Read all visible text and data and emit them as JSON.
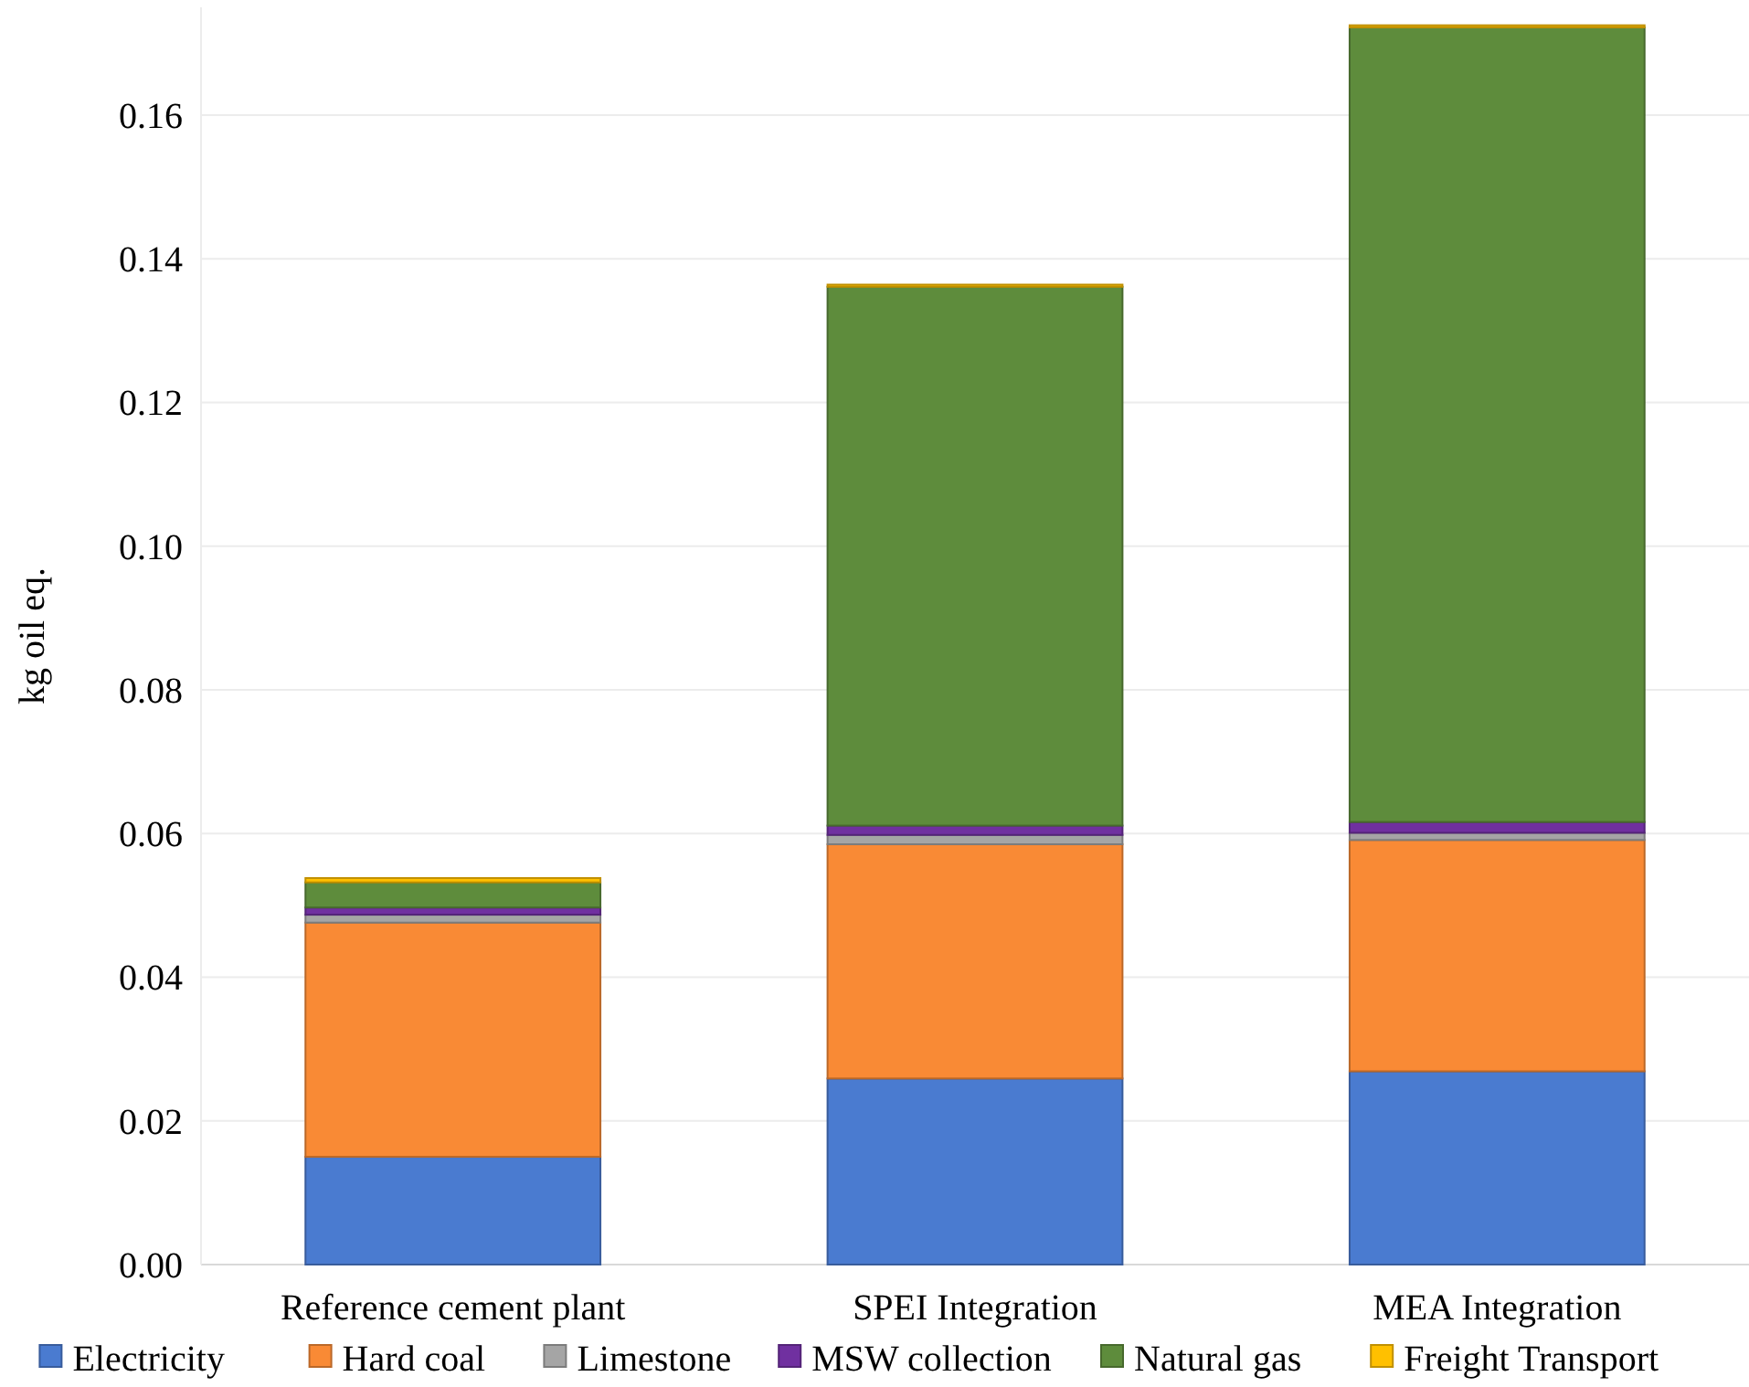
{
  "chart_data": {
    "type": "bar",
    "stacked": true,
    "ylabel": "kg oil eq.",
    "categories": [
      "Reference cement plant",
      "SPEI Integration",
      "MEA Integration"
    ],
    "series": [
      {
        "name": "Electricity",
        "color": "#4a7bd0",
        "values": [
          0.015,
          0.0259,
          0.0269
        ]
      },
      {
        "name": "Hard coal",
        "color": "#f98a35",
        "values": [
          0.0326,
          0.0326,
          0.0322
        ]
      },
      {
        "name": "Limestone",
        "color": "#a5a5a5",
        "values": [
          0.0011,
          0.0013,
          0.001
        ]
      },
      {
        "name": "MSW collection",
        "color": "#7030a0",
        "values": [
          0.001,
          0.0013,
          0.0015
        ]
      },
      {
        "name": "Natural gas",
        "color": "#5e8c3c",
        "values": [
          0.0035,
          0.075,
          0.1106
        ]
      },
      {
        "name": "Freight Transport",
        "color": "#ffc000",
        "values": [
          0.0006,
          0.0003,
          0.0003
        ]
      }
    ],
    "ylim": [
      0,
      0.175
    ],
    "yticks": [
      {
        "value": 0,
        "label": "0.00"
      },
      0.02,
      0.04,
      0.06,
      0.08,
      {
        "value": 0.1,
        "label": "0.10"
      },
      0.12,
      0.14,
      0.16
    ],
    "grid": "y",
    "legend": "bottom"
  }
}
